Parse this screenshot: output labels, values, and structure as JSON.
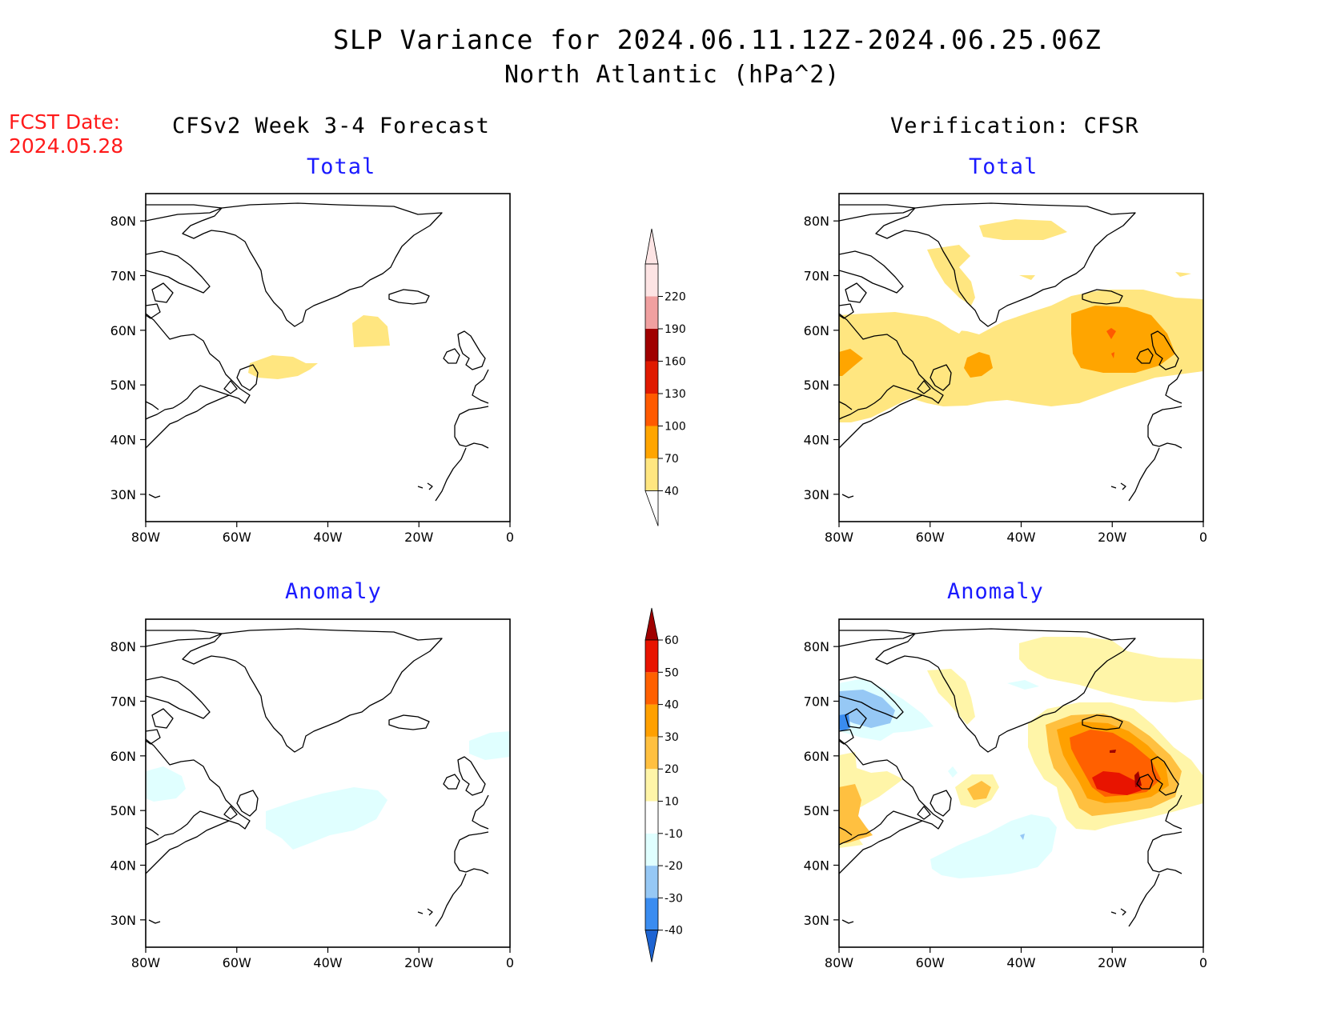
{
  "header": {
    "title": "SLP Variance for 2024.06.11.12Z-2024.06.25.06Z",
    "subtitle": "North Atlantic (hPa^2)",
    "fcst_label": "FCST Date:",
    "fcst_date": "2024.05.28"
  },
  "columns": {
    "left": "CFSv2 Week 3-4 Forecast",
    "right": "Verification: CFSR"
  },
  "panels": [
    {
      "id": "forecast-total",
      "label": "Total"
    },
    {
      "id": "verification-total",
      "label": "Total"
    },
    {
      "id": "forecast-anomaly",
      "label": "Anomaly"
    },
    {
      "id": "verification-anomaly",
      "label": "Anomaly"
    }
  ],
  "axes": {
    "lat_ticks": [
      "80N",
      "70N",
      "60N",
      "50N",
      "40N",
      "30N"
    ],
    "lon_ticks": [
      "80W",
      "60W",
      "40W",
      "20W",
      "0"
    ],
    "lat_range": [
      25,
      85
    ],
    "lon_range": [
      -80,
      0
    ]
  },
  "colorbar_total": {
    "labels": [
      "40",
      "70",
      "100",
      "130",
      "160",
      "190",
      "220"
    ],
    "colors": [
      "#ffe680",
      "#ffa500",
      "#ff5a00",
      "#e01a00",
      "#a00000",
      "#f0a0a0",
      "#fde4e4"
    ]
  },
  "colorbar_anomaly": {
    "labels": [
      "-40",
      "-30",
      "-20",
      "-10",
      "10",
      "20",
      "30",
      "40",
      "50",
      "60"
    ],
    "colors": [
      "#1e64d2",
      "#3a8cf0",
      "#96c8f5",
      "#e0ffff",
      "#ffffff",
      "#fff5a8",
      "#ffc040",
      "#ffa000",
      "#ff6000",
      "#e81400",
      "#a00000"
    ]
  },
  "chart_data": {
    "type": "heatmap",
    "title": "SLP Variance for 2024.06.11.12Z-2024.06.25.06Z",
    "subtitle": "North Atlantic (hPa^2)",
    "units": "hPa^2",
    "xlim": [
      -80,
      0
    ],
    "ylim": [
      25,
      85
    ],
    "fields": [
      {
        "panel": "CFSv2 Week 3-4 Forecast / Total",
        "max_contour_level": "40-70"
      },
      {
        "panel": "Verification: CFSR / Total",
        "max_contour_level": "100-130"
      },
      {
        "panel": "CFSv2 Week 3-4 Forecast / Anomaly",
        "min_contour_level": "-20 to -10"
      },
      {
        "panel": "Verification: CFSR / Anomaly",
        "max_contour_level": "50-60",
        "min_contour_level": "-40 to -30"
      }
    ]
  }
}
